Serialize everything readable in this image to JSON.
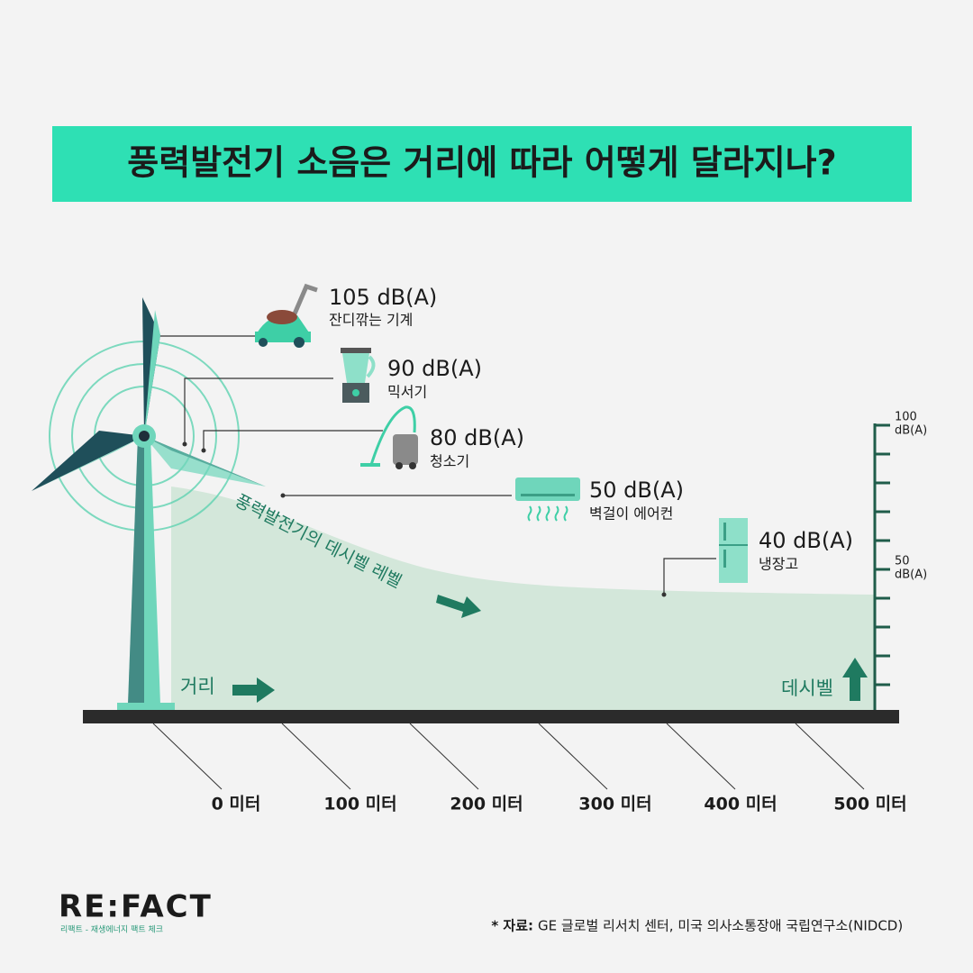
{
  "title": "풍력발전기 소음은 거리에 따라 어떻게 달라지나?",
  "sources": [
    {
      "level": "105 dB(A)",
      "name": "잔디깎는 기계"
    },
    {
      "level": "90 dB(A)",
      "name": "믹서기"
    },
    {
      "level": "80 dB(A)",
      "name": "청소기"
    },
    {
      "level": "50 dB(A)",
      "name": "벽걸이 에어컨"
    },
    {
      "level": "40 dB(A)",
      "name": "냉장고"
    }
  ],
  "curve_label": "풍력발전기의 데시벨 레벨",
  "distance_label": "거리",
  "decibel_label": "데시벨",
  "distance_ticks": [
    "0 미터",
    "100 미터",
    "200 미터",
    "300 미터",
    "400 미터",
    "500 미터"
  ],
  "decibel_ticks": [
    {
      "number": "100",
      "unit": "dB(A)"
    },
    {
      "number": "50",
      "unit": "dB(A)"
    }
  ],
  "logo": {
    "brand": "RE:FACT",
    "tagline": "리팩트 - 재생에너지 팩트 체크"
  },
  "source": {
    "label": "* 자료:",
    "text": "GE 글로벌 리서치 센터, 미국 의사소통장애 국립연구소(NIDCD)"
  }
}
